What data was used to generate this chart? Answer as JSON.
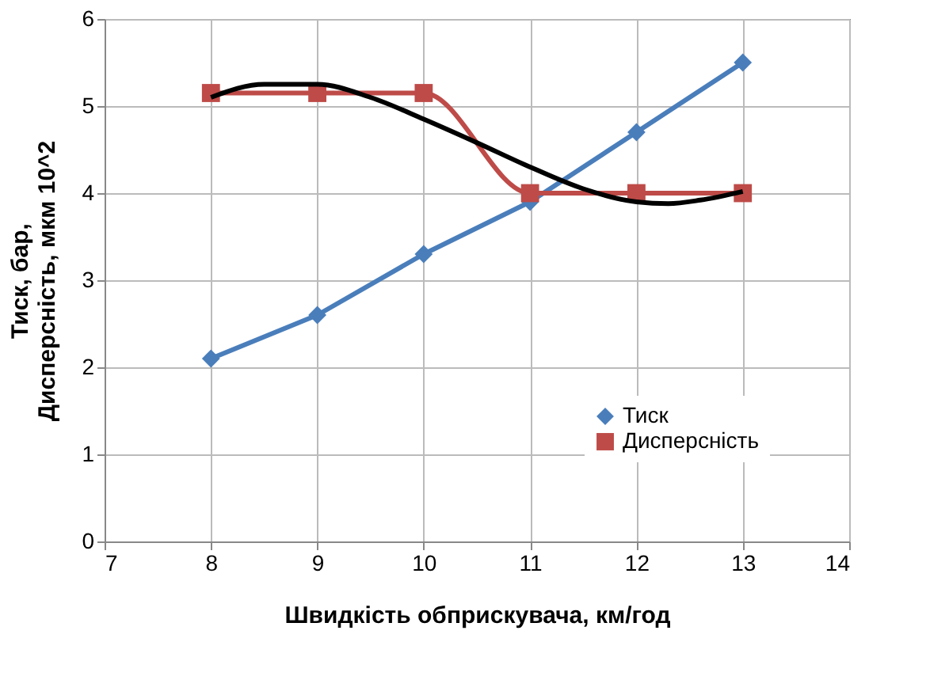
{
  "chart_data": {
    "type": "line",
    "xlabel": "Швидкість обприскувача, км/год",
    "ylabel": "Тиск, бар,\nДисперсність, мкм 10^2",
    "x": [
      8,
      9,
      10,
      11,
      12,
      13
    ],
    "series": [
      {
        "name": "Тиск",
        "color": "#4a7ebb",
        "values": [
          2.1,
          2.6,
          3.3,
          3.9,
          4.7,
          5.5
        ],
        "marker": "diamond"
      },
      {
        "name": "Дисперсність",
        "color": "#be4b48",
        "values": [
          5.15,
          5.15,
          5.15,
          4.0,
          4.0,
          4.0
        ],
        "marker": "square"
      },
      {
        "type": "line",
        "color": "#000000",
        "marker": "none",
        "x": [
          8,
          8.5,
          9,
          9.5,
          10,
          10.5,
          11,
          11.5,
          12,
          12.3,
          12.6,
          13
        ],
        "values": [
          5.1,
          5.25,
          5.25,
          5.1,
          4.85,
          4.58,
          4.3,
          4.05,
          3.9,
          3.88,
          3.92,
          4.02
        ]
      }
    ],
    "xlim": [
      7,
      14
    ],
    "xticks": [
      7,
      8,
      9,
      10,
      11,
      12,
      13,
      14
    ],
    "ylim": [
      0,
      6
    ],
    "yticks": [
      0,
      1,
      2,
      3,
      4,
      5,
      6
    ],
    "grid": true,
    "legend": "bottom",
    "line_style": "solid"
  }
}
